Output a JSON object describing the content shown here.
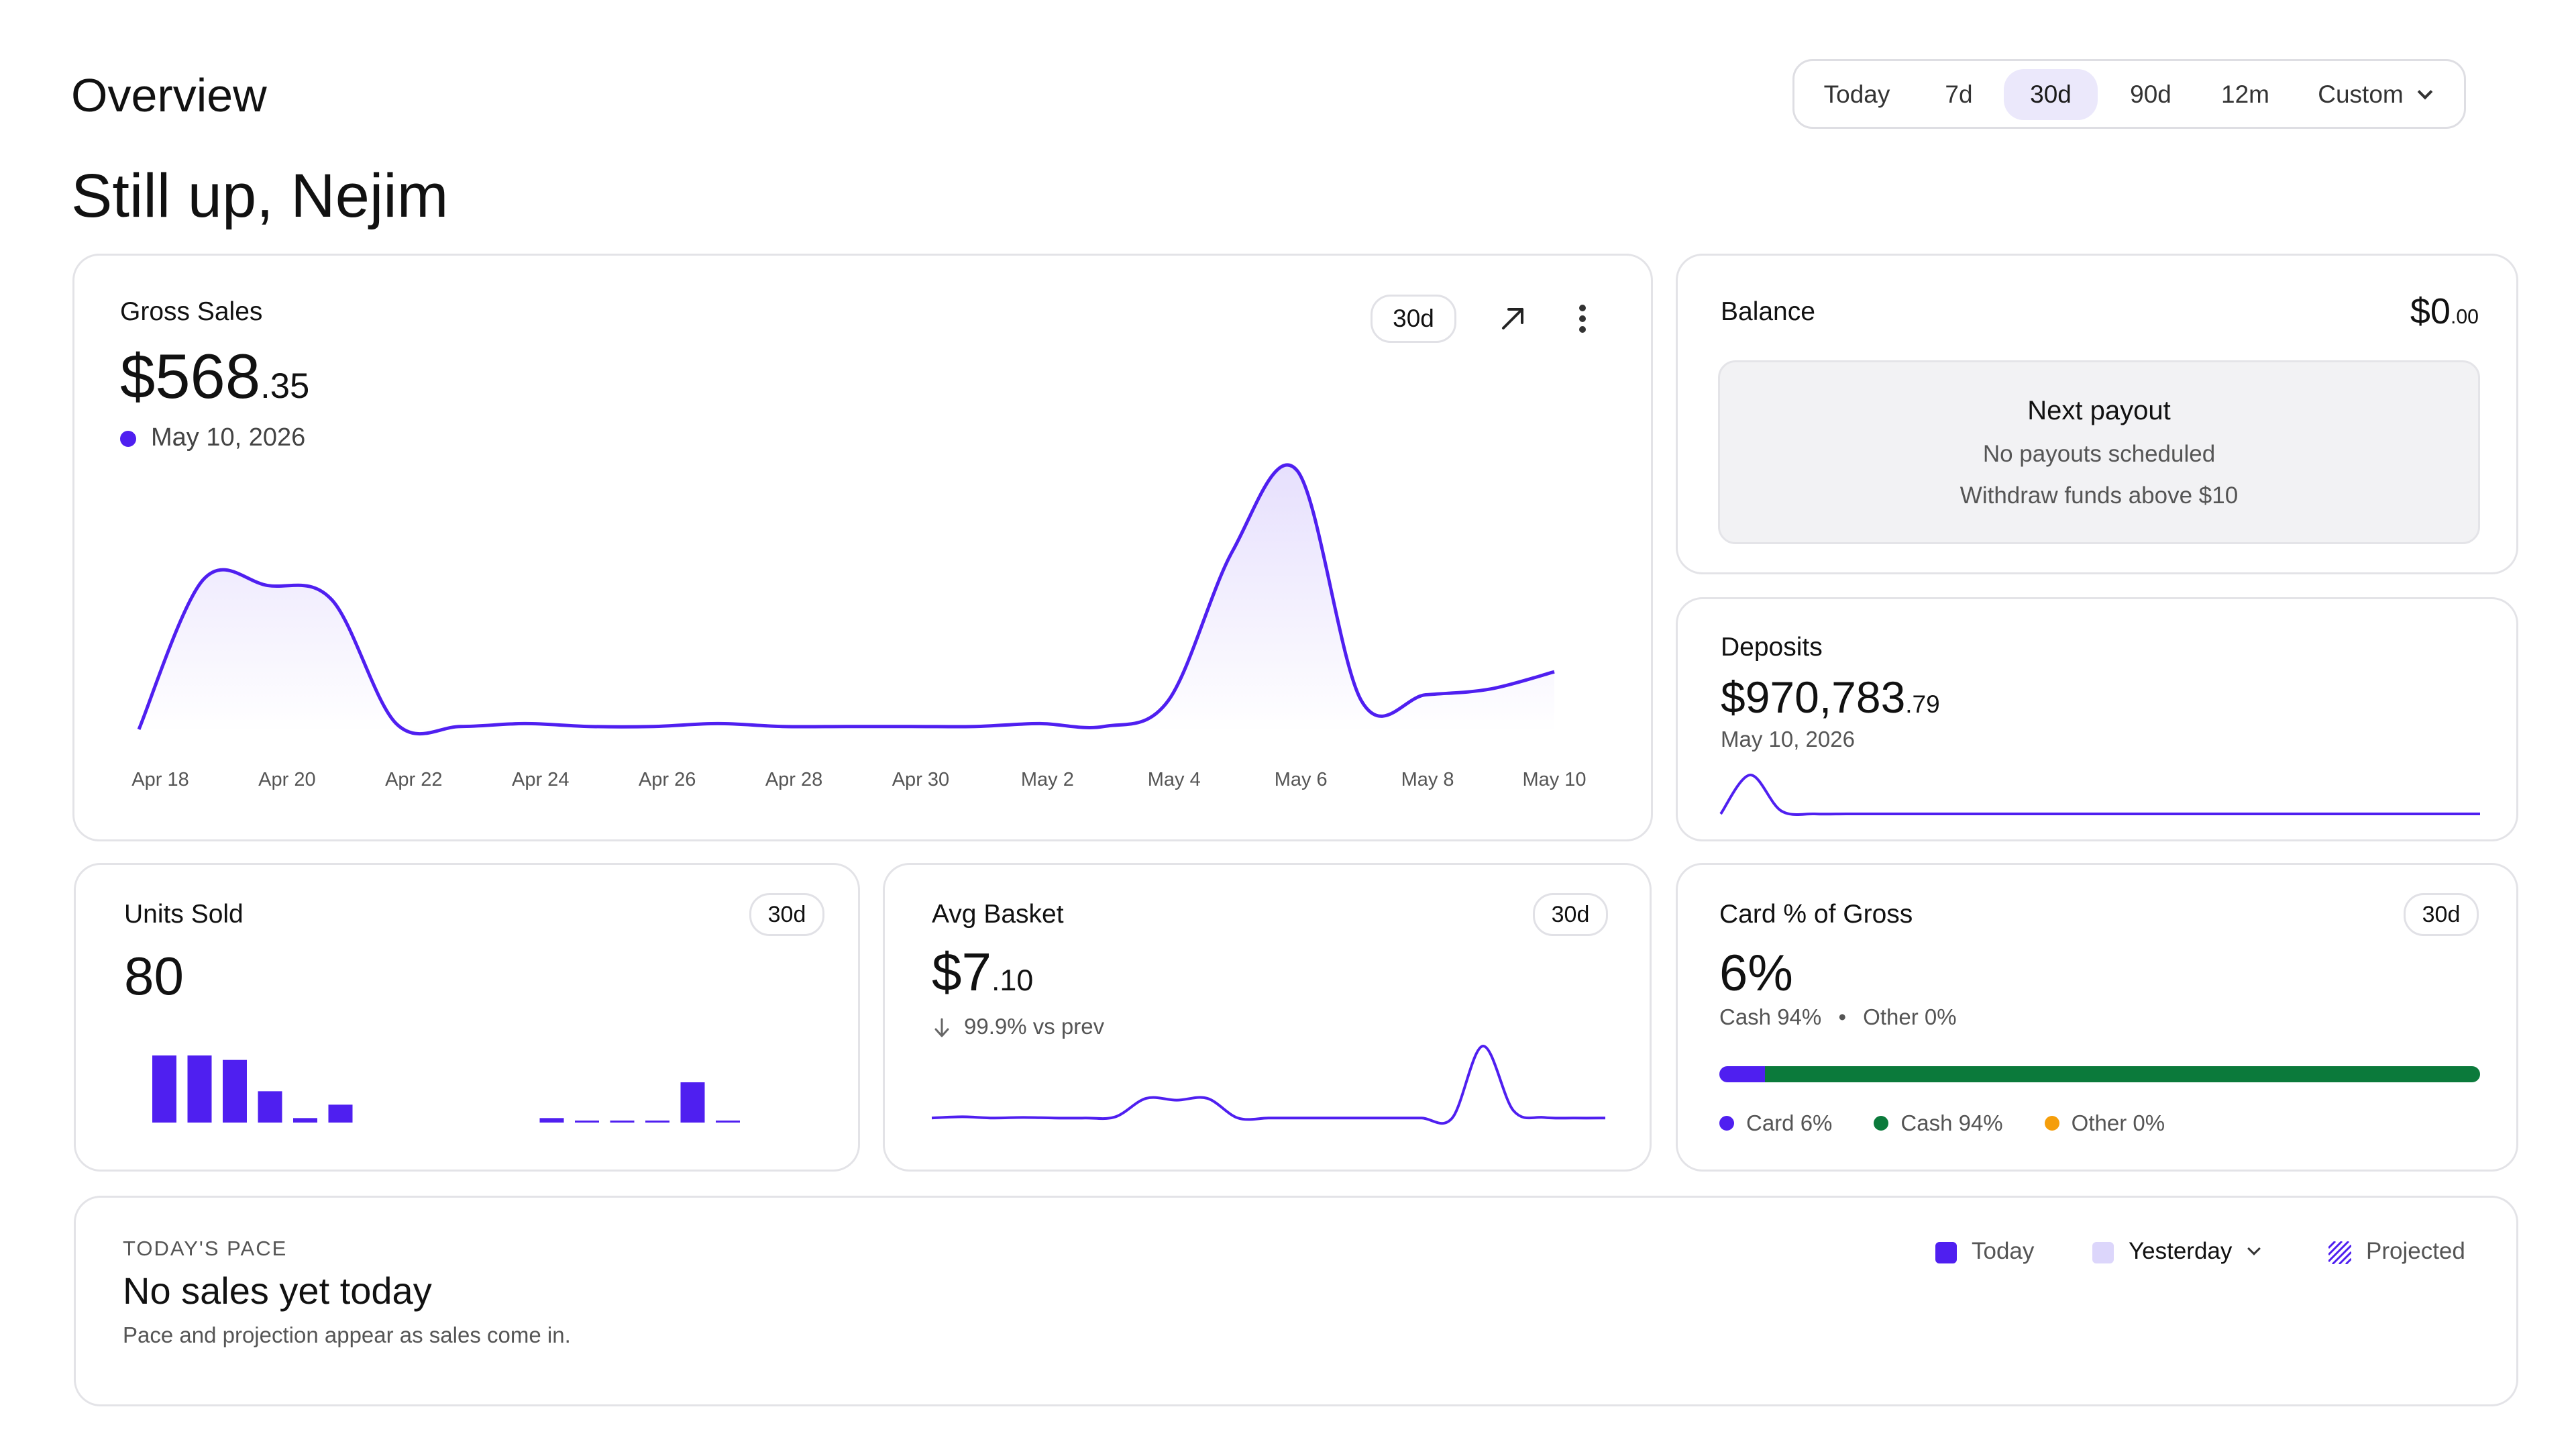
{
  "header": {
    "title": "Overview",
    "greeting": "Still up, Nejim"
  },
  "range_selector": {
    "options": [
      "Today",
      "7d",
      "30d",
      "90d",
      "12m",
      "Custom"
    ],
    "selected": "30d"
  },
  "gross_sales": {
    "title": "Gross Sales",
    "range_badge": "30d",
    "value_main": "$568",
    "value_cents": ".35",
    "date": "May 10, 2026",
    "accent_color": "#4f1ff0",
    "icons": [
      "arrow-up-right-icon",
      "more-vertical-icon"
    ],
    "x_labels": [
      "Apr 18",
      "Apr 20",
      "Apr 22",
      "Apr 24",
      "Apr 26",
      "Apr 28",
      "Apr 30",
      "May 2",
      "May 4",
      "May 6",
      "May 8",
      "May 10"
    ]
  },
  "balance": {
    "title": "Balance",
    "value_main": "$0",
    "value_cents": ".00",
    "payout_title": "Next payout",
    "payout_line1": "No payouts scheduled",
    "payout_line2": "Withdraw funds above $10"
  },
  "deposits": {
    "title": "Deposits",
    "value_main": "$970,783",
    "value_cents": ".79",
    "date": "May 10, 2026"
  },
  "units_sold": {
    "title": "Units Sold",
    "range_badge": "30d",
    "value": "80"
  },
  "avg_basket": {
    "title": "Avg Basket",
    "range_badge": "30d",
    "value_main": "$7",
    "value_cents": ".10",
    "change": "99.9% vs prev",
    "change_icon": "arrow-down-icon"
  },
  "card_pct": {
    "title": "Card % of Gross",
    "range_badge": "30d",
    "value": "6%",
    "sub_cash": "Cash 94%",
    "sub_sep": "•",
    "sub_other": "Other 0%",
    "card_share": 0.06,
    "cash_share": 0.94,
    "other_share": 0,
    "legend": [
      {
        "label": "Card 6%",
        "color": "#4f1ff0"
      },
      {
        "label": "Cash 94%",
        "color": "#0b7a3b"
      },
      {
        "label": "Other 0%",
        "color": "#f59e0b"
      }
    ]
  },
  "todays_pace": {
    "kicker": "TODAY'S PACE",
    "title": "No sales yet today",
    "subtitle": "Pace and projection appear as sales come in.",
    "legend_today": "Today",
    "legend_yesterday": "Yesterday",
    "legend_projected": "Projected"
  },
  "chart_data": [
    {
      "type": "area",
      "title": "Gross Sales",
      "x": [
        "Apr 18",
        "Apr 19",
        "Apr 20",
        "Apr 21",
        "Apr 22",
        "Apr 23",
        "Apr 24",
        "Apr 25",
        "Apr 26",
        "Apr 27",
        "Apr 28",
        "Apr 29",
        "Apr 30",
        "May 1",
        "May 2",
        "May 3",
        "May 4",
        "May 5",
        "May 6",
        "May 7",
        "May 8",
        "May 9",
        "May 10"
      ],
      "values": [
        0,
        52,
        50,
        45,
        2,
        1,
        2,
        1,
        1,
        2,
        1,
        1,
        1,
        1,
        2,
        1,
        10,
        62,
        90,
        10,
        12,
        14,
        20
      ],
      "color": "#4f1ff0",
      "grid": false
    },
    {
      "type": "line",
      "title": "Deposits",
      "values": [
        0,
        25,
        2,
        0,
        0,
        0,
        0,
        0,
        0,
        0,
        0,
        0,
        0,
        0,
        0,
        0,
        0,
        0,
        0,
        0,
        0,
        0,
        0,
        0,
        0
      ],
      "color": "#4f1ff0"
    },
    {
      "type": "bar",
      "title": "Units Sold",
      "values": [
        15,
        15,
        14,
        7,
        1,
        4,
        0,
        0,
        0,
        0,
        0,
        1,
        0.4,
        0.4,
        0.4,
        9,
        0.4
      ],
      "color": "#4f1ff0"
    },
    {
      "type": "line",
      "title": "Avg Basket",
      "values": [
        0.3,
        0.5,
        0.3,
        0.4,
        0.3,
        0.3,
        0.5,
        3.5,
        3.2,
        3.5,
        0.3,
        0.3,
        0.3,
        0.3,
        0.3,
        0.3,
        0.3,
        0.3,
        12,
        1.5,
        0.4,
        0.3,
        0.3
      ],
      "color": "#4f1ff0"
    }
  ]
}
